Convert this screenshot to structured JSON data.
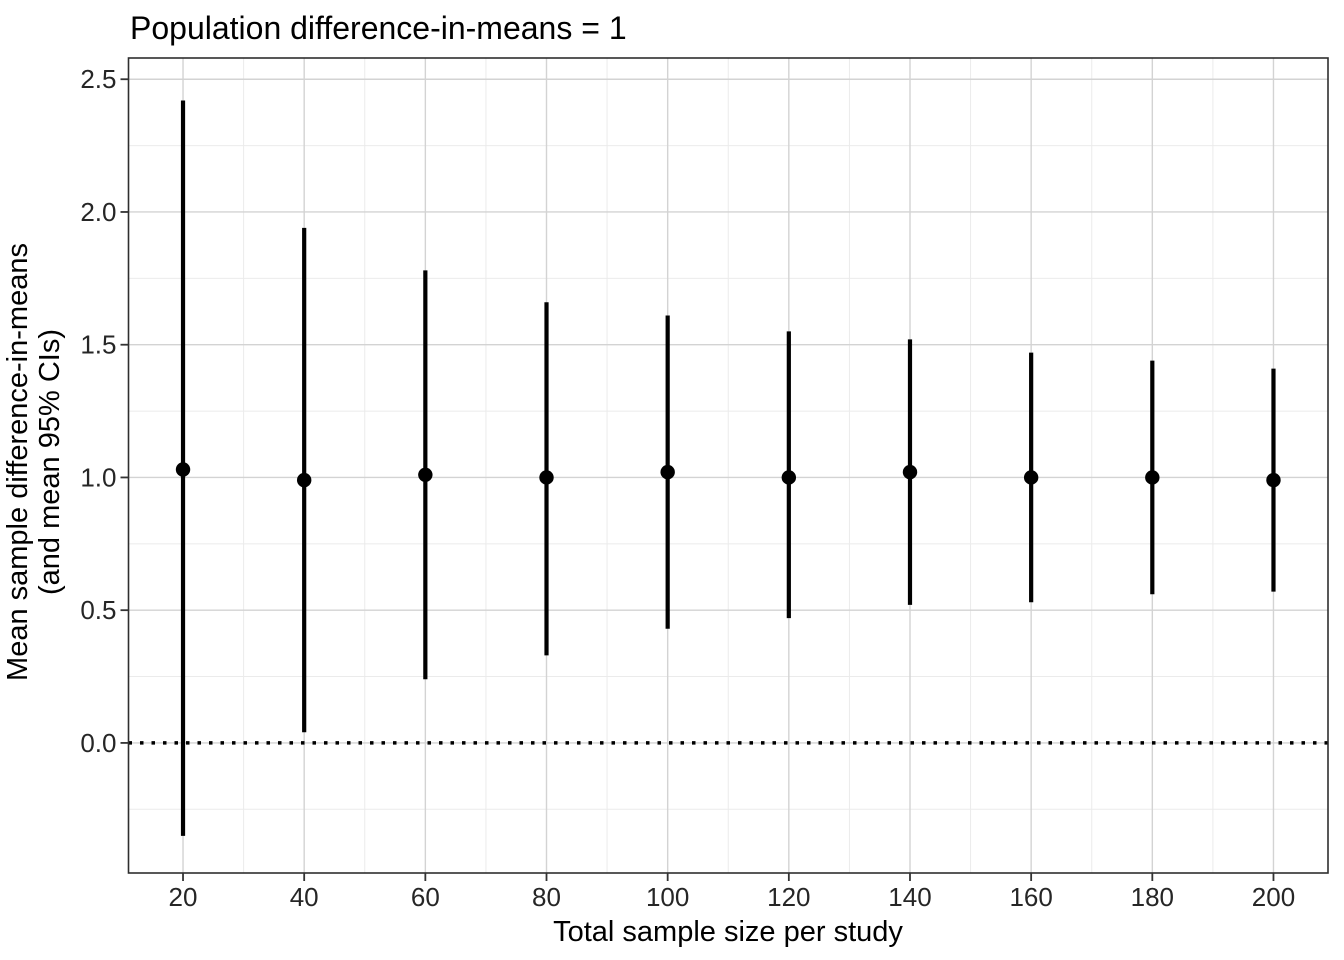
{
  "figure": {
    "background": "#ffffff"
  },
  "chart_data": {
    "type": "scatter",
    "subtype": "point-range-95ci",
    "title": "Population difference-in-means = 1",
    "xlabel": "Total sample size per study",
    "ylabel_line1": "Mean sample difference-in-means",
    "ylabel_line2": "(and mean 95% CIs)",
    "x": [
      20,
      40,
      60,
      80,
      100,
      120,
      140,
      160,
      180,
      200
    ],
    "series": [
      {
        "name": "mean_difference",
        "values": [
          1.03,
          0.99,
          1.01,
          1.0,
          1.02,
          1.0,
          1.02,
          1.0,
          1.0,
          0.99
        ]
      },
      {
        "name": "ci_lower",
        "values": [
          -0.35,
          0.04,
          0.24,
          0.33,
          0.43,
          0.47,
          0.52,
          0.53,
          0.56,
          0.57
        ]
      },
      {
        "name": "ci_upper",
        "values": [
          2.42,
          1.94,
          1.78,
          1.66,
          1.61,
          1.55,
          1.52,
          1.47,
          1.44,
          1.41
        ]
      }
    ],
    "x_ticks": [
      20,
      40,
      60,
      80,
      100,
      120,
      140,
      160,
      180,
      200
    ],
    "y_ticks": [
      0.0,
      0.5,
      1.0,
      1.5,
      2.0,
      2.5
    ],
    "xlim": [
      11,
      209
    ],
    "ylim": [
      -0.49,
      2.58
    ],
    "reference_line_y": 0,
    "grid": "major+minor",
    "legend": "none",
    "colors": {
      "points": "#000000",
      "error_bars": "#000000",
      "reference_line": "#000000",
      "grid_major": "#d3d3d3",
      "grid_minor": "#ebebeb",
      "panel_border": "#2e2e2e",
      "axis_ticks": "#333333",
      "axis_text": "#262626",
      "title_text": "#000000",
      "background": "#ffffff"
    }
  }
}
